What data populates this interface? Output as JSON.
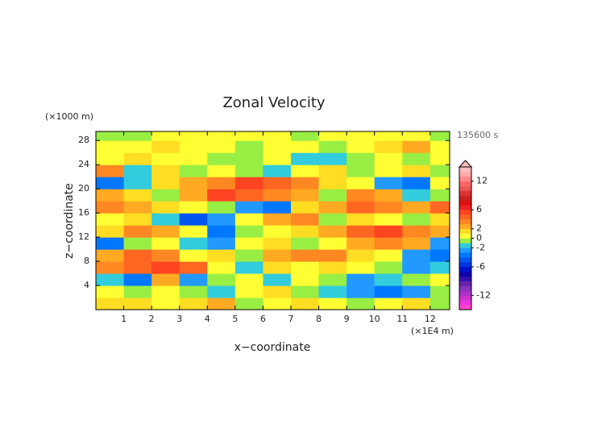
{
  "chart_data": {
    "type": "contour",
    "title": "Zonal Velocity",
    "x_label": "x−coordinate",
    "y_label": "z−coordinate",
    "x_unit": "(×1E4 m)",
    "y_unit": "(×1000 m)",
    "time_label": "135600 s",
    "xlim": [
      0,
      12.7
    ],
    "ylim": [
      0,
      29.5
    ],
    "xticks": [
      1,
      2,
      3,
      4,
      5,
      6,
      7,
      8,
      9,
      10,
      11,
      12
    ],
    "yticks": [
      4,
      8,
      12,
      16,
      20,
      24,
      28
    ],
    "x": [
      0.5,
      1.5,
      2.5,
      3.5,
      4.5,
      5.5,
      6.5,
      7.5,
      8.5,
      9.5,
      10.5,
      11.5,
      12.5
    ],
    "y": [
      1,
      3,
      5,
      7,
      9,
      11,
      13,
      15,
      17,
      19,
      21,
      23,
      25,
      27,
      29
    ],
    "values": [
      [
        1,
        1,
        0,
        1,
        2,
        -1,
        0,
        1,
        0,
        -1,
        0,
        1,
        -1
      ],
      [
        0,
        -1,
        0,
        -1,
        -2,
        0,
        1,
        -1,
        -2,
        -3,
        -4,
        -3,
        -1
      ],
      [
        -2,
        -4,
        2,
        -3,
        -1,
        0,
        -2,
        0,
        -1,
        -3,
        -2,
        -1,
        0
      ],
      [
        3,
        4,
        5,
        4,
        0,
        -2,
        1,
        0,
        1,
        0,
        -1,
        -3,
        -2
      ],
      [
        2,
        4,
        3,
        0,
        1,
        -1,
        2,
        3,
        3,
        1,
        0,
        -3,
        -4
      ],
      [
        -4,
        -1,
        0,
        -2,
        -3,
        0,
        1,
        -1,
        0,
        2,
        3,
        2,
        -3
      ],
      [
        1,
        3,
        2,
        0,
        -4,
        -1,
        0,
        1,
        2,
        4,
        5,
        3,
        2
      ],
      [
        0,
        1,
        -2,
        -5,
        -3,
        0,
        2,
        3,
        -1,
        1,
        0,
        -1,
        1
      ],
      [
        3,
        2,
        1,
        0,
        -1,
        -3,
        -4,
        1,
        2,
        4,
        3,
        2,
        4
      ],
      [
        2,
        1,
        -1,
        2,
        5,
        4,
        3,
        2,
        -1,
        3,
        2,
        -2,
        -1
      ],
      [
        -4,
        -2,
        1,
        2,
        3,
        5,
        4,
        3,
        1,
        0,
        -3,
        -4,
        0
      ],
      [
        3,
        -2,
        1,
        -1,
        0,
        -1,
        -2,
        0,
        1,
        -1,
        0,
        1,
        -1
      ],
      [
        0,
        1,
        0,
        0,
        -1,
        -1,
        0,
        -2,
        -2,
        -1,
        0,
        -1,
        0
      ],
      [
        0,
        0,
        1,
        0,
        0,
        -1,
        0,
        0,
        -1,
        0,
        1,
        2,
        0
      ],
      [
        -1,
        -1,
        0,
        0,
        0,
        0,
        0,
        -1,
        0,
        0,
        0,
        0,
        -1
      ]
    ],
    "levels": [
      -15,
      -14,
      -13,
      -12,
      -11,
      -10,
      -9,
      -8,
      -7,
      -6,
      -5,
      -4,
      -3,
      -2,
      -1,
      0,
      1,
      2,
      3,
      4,
      5,
      6,
      7,
      8,
      9,
      10,
      11,
      12,
      13,
      14,
      15
    ],
    "colors": [
      "#ff44cc",
      "#ee33dd",
      "#cc33cc",
      "#aa33cc",
      "#8833bb",
      "#6622aa",
      "#3311aa",
      "#1100aa",
      "#0011cc",
      "#0033dd",
      "#0055ee",
      "#0077ff",
      "#2299ff",
      "#33ccdd",
      "#99ee44",
      "#ffff33",
      "#ffdd22",
      "#ffaa22",
      "#ff8822",
      "#ff6622",
      "#ff4422",
      "#ee2222",
      "#dd1111",
      "#cc2222",
      "#dd3333",
      "#ee5555",
      "#ff6666",
      "#ff8888",
      "#ffaaaa",
      "#ffbbbb"
    ],
    "colorbar_ticks": [
      12,
      6,
      2,
      0,
      -2,
      -6,
      -12
    ]
  }
}
